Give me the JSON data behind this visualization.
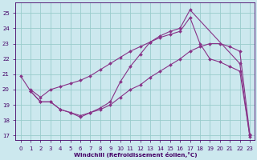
{
  "background_color": "#cce8ee",
  "grid_color": "#99cccc",
  "line_color": "#883388",
  "tick_color": "#440066",
  "xlim": [
    -0.5,
    23.5
  ],
  "ylim": [
    16.7,
    25.7
  ],
  "yticks": [
    17,
    18,
    19,
    20,
    21,
    22,
    23,
    24,
    25
  ],
  "xticks": [
    0,
    1,
    2,
    3,
    4,
    5,
    6,
    7,
    8,
    9,
    10,
    11,
    12,
    13,
    14,
    15,
    16,
    17,
    18,
    19,
    20,
    21,
    22,
    23
  ],
  "xlabel": "Windchill (Refroidissement éolien,°C)",
  "curve1_x": [
    0,
    1,
    2,
    3,
    4,
    5,
    6,
    7,
    8,
    9,
    10,
    11,
    12,
    13,
    14,
    15,
    16,
    17,
    22,
    23
  ],
  "curve1_y": [
    20.9,
    19.9,
    19.2,
    19.2,
    18.7,
    18.5,
    18.2,
    18.5,
    18.8,
    19.2,
    20.5,
    21.5,
    22.3,
    23.1,
    23.5,
    23.8,
    24.0,
    25.2,
    21.7,
    16.9
  ],
  "curve2_x": [
    1,
    2,
    3,
    4,
    5,
    6,
    7,
    8,
    9,
    10,
    11,
    12,
    13,
    14,
    15,
    16,
    17,
    18,
    19,
    20,
    21,
    22,
    23
  ],
  "curve2_y": [
    20.0,
    19.5,
    20.0,
    20.2,
    20.4,
    20.6,
    20.9,
    21.3,
    21.7,
    22.1,
    22.5,
    22.8,
    23.1,
    23.4,
    23.6,
    23.8,
    24.7,
    23.0,
    22.0,
    21.8,
    21.5,
    21.2,
    17.0
  ],
  "curve3_x": [
    1,
    2,
    3,
    4,
    5,
    6,
    7,
    8,
    9,
    10,
    11,
    12,
    13,
    14,
    15,
    16,
    17,
    18,
    19,
    20,
    21,
    22,
    23
  ],
  "curve3_y": [
    19.9,
    19.2,
    19.2,
    18.7,
    18.5,
    18.3,
    18.5,
    18.7,
    19.0,
    19.5,
    20.0,
    20.3,
    20.8,
    21.2,
    21.6,
    22.0,
    22.5,
    22.8,
    23.0,
    23.0,
    22.8,
    22.5,
    17.1
  ]
}
